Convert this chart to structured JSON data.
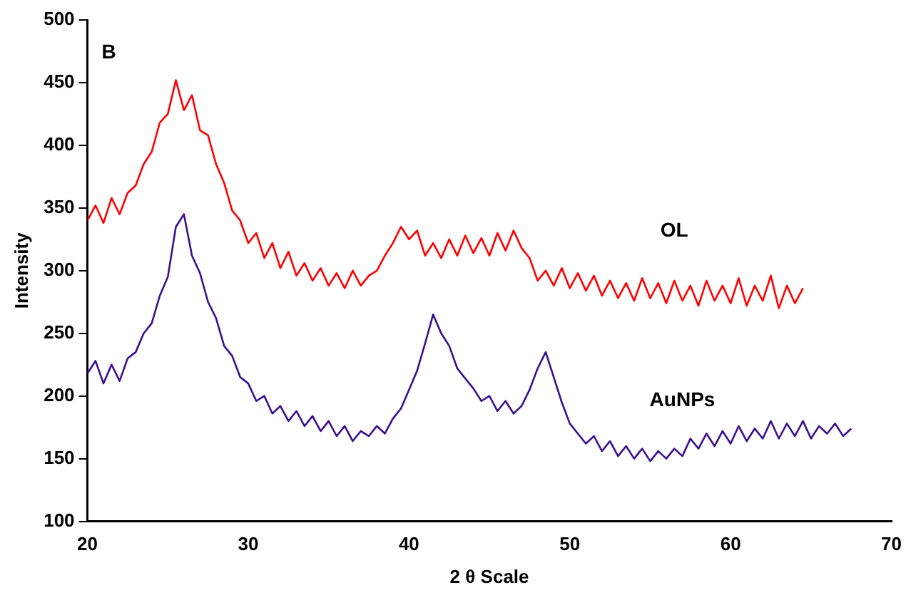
{
  "chart_data": {
    "type": "line",
    "xlabel": "2 θ Scale",
    "ylabel": "Intensity",
    "annotations": [
      "B"
    ],
    "xlim": [
      20,
      70
    ],
    "xticks": [
      20,
      30,
      40,
      50,
      60,
      70
    ],
    "ylim": [
      100,
      500
    ],
    "yticks": [
      100,
      150,
      200,
      250,
      300,
      350,
      400,
      450,
      500
    ],
    "grid": false,
    "legend": false,
    "marker": "none",
    "line_style": "solid",
    "series": [
      {
        "name": "OL",
        "color": "#ff0000",
        "x": [
          20,
          20.5,
          21,
          21.5,
          22,
          22.5,
          23,
          23.5,
          24,
          24.5,
          25,
          25.5,
          26,
          26.5,
          27,
          27.5,
          28,
          28.5,
          29,
          29.5,
          30,
          30.5,
          31,
          31.5,
          32,
          32.5,
          33,
          33.5,
          34,
          34.5,
          35,
          35.5,
          36,
          36.5,
          37,
          37.5,
          38,
          38.5,
          39,
          39.5,
          40,
          40.5,
          41,
          41.5,
          42,
          42.5,
          43,
          43.5,
          44,
          44.5,
          45,
          45.5,
          46,
          46.5,
          47,
          47.5,
          48,
          48.5,
          49,
          49.5,
          50,
          50.5,
          51,
          51.5,
          52,
          52.5,
          53,
          53.5,
          54,
          54.5,
          55,
          55.5,
          56,
          56.5,
          57,
          57.5,
          58,
          58.5,
          59,
          59.5,
          60,
          60.5,
          61,
          61.5,
          62,
          62.5,
          63,
          63.5,
          64,
          64.5
        ],
        "values": [
          340,
          352,
          338,
          358,
          345,
          362,
          368,
          385,
          395,
          418,
          425,
          452,
          428,
          440,
          412,
          408,
          385,
          370,
          348,
          340,
          322,
          330,
          310,
          322,
          302,
          315,
          296,
          306,
          292,
          302,
          288,
          298,
          286,
          300,
          288,
          296,
          300,
          312,
          322,
          335,
          325,
          332,
          312,
          322,
          310,
          325,
          312,
          328,
          314,
          326,
          312,
          330,
          316,
          332,
          318,
          310,
          292,
          300,
          288,
          302,
          286,
          298,
          284,
          296,
          280,
          292,
          278,
          290,
          276,
          294,
          278,
          290,
          274,
          292,
          276,
          288,
          272,
          292,
          276,
          288,
          274,
          294,
          272,
          288,
          276,
          296,
          270,
          288,
          274,
          286
        ]
      },
      {
        "name": "AuNPs",
        "color": "#3a1090",
        "x": [
          20,
          20.5,
          21,
          21.5,
          22,
          22.5,
          23,
          23.5,
          24,
          24.5,
          25,
          25.5,
          26,
          26.5,
          27,
          27.5,
          28,
          28.5,
          29,
          29.5,
          30,
          30.5,
          31,
          31.5,
          32,
          32.5,
          33,
          33.5,
          34,
          34.5,
          35,
          35.5,
          36,
          36.5,
          37,
          37.5,
          38,
          38.5,
          39,
          39.5,
          40,
          40.5,
          41,
          41.5,
          42,
          42.5,
          43,
          43.5,
          44,
          44.5,
          45,
          45.5,
          46,
          46.5,
          47,
          47.5,
          48,
          48.5,
          49,
          49.5,
          50,
          50.5,
          51,
          51.5,
          52,
          52.5,
          53,
          53.5,
          54,
          54.5,
          55,
          55.5,
          56,
          56.5,
          57,
          57.5,
          58,
          58.5,
          59,
          59.5,
          60,
          60.5,
          61,
          61.5,
          62,
          62.5,
          63,
          63.5,
          64,
          64.5,
          65,
          65.5,
          66,
          66.5,
          67,
          67.5
        ],
        "values": [
          218,
          228,
          210,
          225,
          212,
          230,
          235,
          250,
          258,
          280,
          295,
          335,
          345,
          312,
          298,
          275,
          262,
          240,
          232,
          215,
          210,
          196,
          200,
          186,
          192,
          180,
          188,
          176,
          184,
          172,
          180,
          168,
          176,
          164,
          172,
          168,
          176,
          170,
          182,
          190,
          205,
          220,
          242,
          265,
          250,
          240,
          222,
          214,
          206,
          196,
          200,
          188,
          196,
          186,
          192,
          205,
          222,
          235,
          215,
          195,
          178,
          170,
          162,
          168,
          156,
          164,
          152,
          160,
          150,
          158,
          148,
          156,
          150,
          158,
          152,
          166,
          158,
          170,
          160,
          172,
          162,
          176,
          164,
          174,
          166,
          180,
          166,
          178,
          168,
          180,
          166,
          176,
          170,
          178,
          168,
          174
        ]
      }
    ]
  }
}
